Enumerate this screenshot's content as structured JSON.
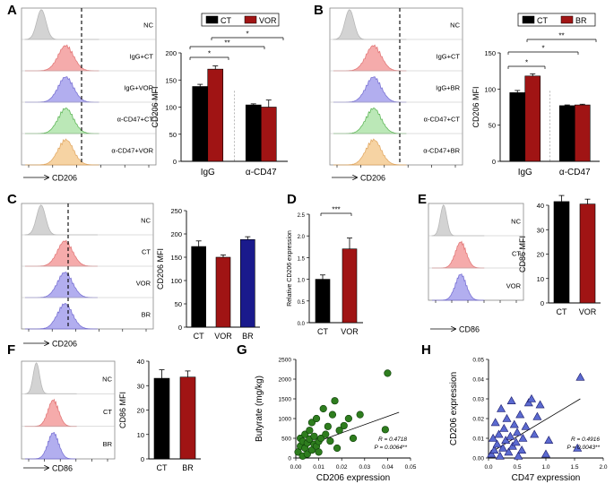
{
  "colors": {
    "black": "#000000",
    "red": "#a01414",
    "navy": "#1a1a8c",
    "green": "#2e7d1e",
    "nc_fill": "#cfcfcf",
    "ct_fill": "#f4a3a3",
    "vor_fill": "#aaa6ee",
    "br_fill": "#aaa6ee",
    "a47ct_fill": "#b4e6b0",
    "a47vor_fill": "#f6cf9a",
    "purple": "#7a72c8",
    "scatter_fill": "#5b6ad0"
  },
  "chart_data": [
    {
      "panel": "A",
      "type": "histogram-overlay",
      "tracks": [
        "NC",
        "IgG+CT",
        "IgG+VOR",
        "α-CD47+CT",
        "α-CD47+VOR"
      ],
      "xlabel": "CD206"
    },
    {
      "panel": "A",
      "type": "bar",
      "title": "",
      "ylabel": "CD206 MFI",
      "ylim": [
        0,
        200
      ],
      "yticks": [
        "0",
        "50",
        "100",
        "150",
        "200"
      ],
      "groups": [
        "IgG",
        "α-CD47"
      ],
      "legend": [
        "CT",
        "VOR"
      ],
      "series": [
        {
          "name": "CT",
          "values": [
            138,
            104
          ],
          "errors": [
            4,
            2
          ]
        },
        {
          "name": "VOR",
          "values": [
            170,
            100
          ],
          "errors": [
            6,
            13
          ]
        }
      ],
      "significance": [
        "*",
        "**",
        "*"
      ]
    },
    {
      "panel": "B",
      "type": "histogram-overlay",
      "tracks": [
        "NC",
        "IgG+CT",
        "IgG+BR",
        "α-CD47+CT",
        "α-CD47+BR"
      ],
      "xlabel": "CD206"
    },
    {
      "panel": "B",
      "type": "bar",
      "ylabel": "CD206 MFI",
      "ylim": [
        0,
        150
      ],
      "yticks": [
        "0",
        "50",
        "100",
        "150"
      ],
      "groups": [
        "IgG",
        "α-CD47"
      ],
      "legend": [
        "CT",
        "BR"
      ],
      "series": [
        {
          "name": "CT",
          "values": [
            95,
            77
          ],
          "errors": [
            3,
            1
          ]
        },
        {
          "name": "BR",
          "values": [
            118,
            78
          ],
          "errors": [
            3,
            1
          ]
        }
      ],
      "significance": [
        "*",
        "*",
        "**"
      ]
    },
    {
      "panel": "C",
      "type": "histogram-overlay",
      "tracks": [
        "NC",
        "CT",
        "VOR",
        "BR"
      ],
      "xlabel": "CD206"
    },
    {
      "panel": "C",
      "type": "bar",
      "ylabel": "CD206 MFI",
      "ylim": [
        0,
        250
      ],
      "yticks": [
        "0",
        "50",
        "100",
        "150",
        "200",
        "250"
      ],
      "categories": [
        "CT",
        "VOR",
        "BR"
      ],
      "values": [
        173,
        150,
        188
      ],
      "errors": [
        12,
        5,
        6
      ]
    },
    {
      "panel": "D",
      "type": "bar",
      "ylabel": "Relative CD206 expression",
      "ylim": [
        0,
        2.5
      ],
      "yticks": [
        "0.0",
        "0.5",
        "1.0",
        "1.5",
        "2.0",
        "2.5"
      ],
      "categories": [
        "CT",
        "VOR"
      ],
      "values": [
        1.0,
        1.7
      ],
      "errors": [
        0.1,
        0.25
      ],
      "significance": [
        "***"
      ]
    },
    {
      "panel": "E",
      "type": "histogram-overlay",
      "tracks": [
        "NC",
        "CT",
        "VOR"
      ],
      "xlabel": "CD86"
    },
    {
      "panel": "E",
      "type": "bar",
      "ylabel": "CD86 MFI",
      "ylim": [
        0,
        40
      ],
      "yticks": [
        "0",
        "10",
        "20",
        "30",
        "40"
      ],
      "categories": [
        "CT",
        "VOR"
      ],
      "values": [
        41.5,
        40.5
      ],
      "errors": [
        2.5,
        2
      ]
    },
    {
      "panel": "F",
      "type": "histogram-overlay",
      "tracks": [
        "NC",
        "CT",
        "BR"
      ],
      "xlabel": "CD86"
    },
    {
      "panel": "F",
      "type": "bar",
      "ylabel": "CD86 MFI",
      "ylim": [
        0,
        40
      ],
      "yticks": [
        "0",
        "10",
        "20",
        "30",
        "40"
      ],
      "categories": [
        "CT",
        "BR"
      ],
      "values": [
        33,
        33.5
      ],
      "errors": [
        3.5,
        2.5
      ]
    },
    {
      "panel": "G",
      "type": "scatter",
      "xlabel": "CD206 expression",
      "ylabel": "Butyrate (mg/kg)",
      "xlim": [
        0,
        0.05
      ],
      "ylim": [
        0,
        2500
      ],
      "xticks": [
        "0.00",
        "0.01",
        "0.02",
        "0.03",
        "0.04",
        "0.05"
      ],
      "yticks": [
        "0",
        "500",
        "1000",
        "1500",
        "2000",
        "2500"
      ],
      "r_text": "R = 0.4718",
      "p_text": "P = 0.0064**",
      "fit": {
        "x": [
          0,
          0.045
        ],
        "y": [
          220,
          1160
        ]
      },
      "points": [
        [
          0.001,
          150
        ],
        [
          0.002,
          300
        ],
        [
          0.002,
          500
        ],
        [
          0.003,
          50
        ],
        [
          0.003,
          420
        ],
        [
          0.004,
          600
        ],
        [
          0.004,
          250
        ],
        [
          0.005,
          100
        ],
        [
          0.005,
          380
        ],
        [
          0.006,
          700
        ],
        [
          0.006,
          480
        ],
        [
          0.007,
          900
        ],
        [
          0.007,
          200
        ],
        [
          0.008,
          350
        ],
        [
          0.008,
          550
        ],
        [
          0.009,
          1000
        ],
        [
          0.009,
          300
        ],
        [
          0.01,
          150
        ],
        [
          0.01,
          420
        ],
        [
          0.011,
          500
        ],
        [
          0.012,
          1250
        ],
        [
          0.013,
          600
        ],
        [
          0.014,
          800
        ],
        [
          0.015,
          430
        ],
        [
          0.016,
          1100
        ],
        [
          0.017,
          1450
        ],
        [
          0.018,
          250
        ],
        [
          0.019,
          700
        ],
        [
          0.021,
          820
        ],
        [
          0.023,
          1000
        ],
        [
          0.025,
          500
        ],
        [
          0.028,
          1100
        ],
        [
          0.039,
          720
        ],
        [
          0.04,
          2150
        ]
      ]
    },
    {
      "panel": "H",
      "type": "scatter",
      "xlabel": "CD47 expression",
      "ylabel": "CD206 expression",
      "xlim": [
        0,
        2
      ],
      "ylim": [
        0,
        0.05
      ],
      "xticks": [
        "0.0",
        "0.5",
        "1.0",
        "1.5",
        "2.0"
      ],
      "yticks": [
        "0.00",
        "0.01",
        "0.02",
        "0.03",
        "0.04",
        "0.05"
      ],
      "r_text": "R = 0.4916",
      "p_text": "P = 0.0043**",
      "fit": {
        "x": [
          0.05,
          1.6
        ],
        "y": [
          0.003,
          0.03
        ]
      },
      "points": [
        [
          0.05,
          0.002
        ],
        [
          0.08,
          0.01
        ],
        [
          0.1,
          0.004
        ],
        [
          0.12,
          0.018
        ],
        [
          0.15,
          0.007
        ],
        [
          0.18,
          0.012
        ],
        [
          0.2,
          0.001
        ],
        [
          0.22,
          0.025
        ],
        [
          0.25,
          0.005
        ],
        [
          0.27,
          0.015
        ],
        [
          0.3,
          0.009
        ],
        [
          0.32,
          0.02
        ],
        [
          0.35,
          0.003
        ],
        [
          0.38,
          0.011
        ],
        [
          0.4,
          0.029
        ],
        [
          0.42,
          0.006
        ],
        [
          0.45,
          0.017
        ],
        [
          0.48,
          0.008
        ],
        [
          0.5,
          0.013
        ],
        [
          0.52,
          0.001
        ],
        [
          0.55,
          0.022
        ],
        [
          0.58,
          0.004
        ],
        [
          0.6,
          0.01
        ],
        [
          0.65,
          0.016
        ],
        [
          0.7,
          0.028
        ],
        [
          0.75,
          0.03
        ],
        [
          0.8,
          0.012
        ],
        [
          0.85,
          0.021
        ],
        [
          0.9,
          0.027
        ],
        [
          1.0,
          0.002
        ],
        [
          1.05,
          0.009
        ],
        [
          1.55,
          0.005
        ],
        [
          1.6,
          0.041
        ]
      ]
    }
  ],
  "panel_letters": [
    "A",
    "B",
    "C",
    "D",
    "E",
    "F",
    "G",
    "H"
  ]
}
